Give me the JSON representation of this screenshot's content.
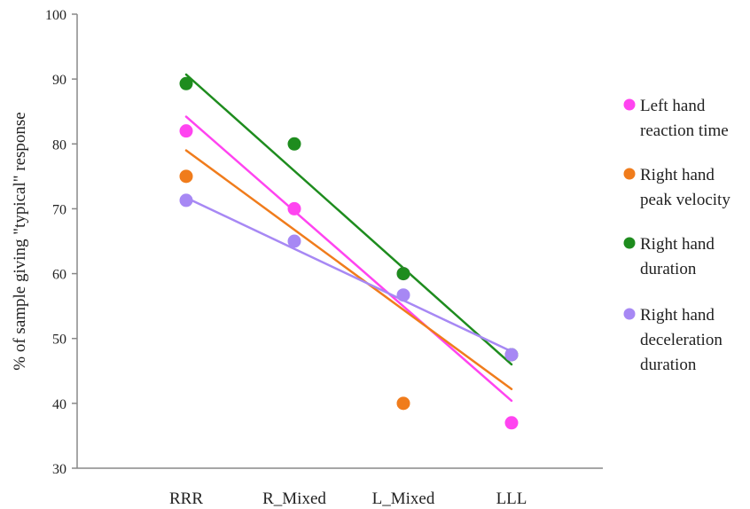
{
  "chart_data": {
    "type": "scatter",
    "categories": [
      "RRR",
      "R_Mixed",
      "L_Mixed",
      "LLL"
    ],
    "ylabel": "% of sample giving \"typical\" response",
    "xlabel": "",
    "ylim": [
      30,
      100
    ],
    "yticks": [
      30,
      40,
      50,
      60,
      70,
      80,
      90,
      100
    ],
    "grid": false,
    "legend_position": "right",
    "trendlines": true,
    "series": [
      {
        "name": "Left hand reaction time",
        "legend_lines": [
          "Left hand",
          "reaction time"
        ],
        "color": "#ff44f0",
        "values": [
          82,
          70,
          60,
          37
        ],
        "trend": [
          84.2,
          40.4
        ]
      },
      {
        "name": "Right hand peak velocity",
        "legend_lines": [
          "Right hand",
          "peak velocity"
        ],
        "color": "#f07c1c",
        "values": [
          75,
          null,
          40,
          null
        ],
        "trend": [
          79,
          42.2
        ]
      },
      {
        "name": "Right hand duration",
        "legend_lines": [
          "Right hand",
          "duration"
        ],
        "color": "#1e8c1e",
        "values": [
          89.3,
          80,
          60,
          47.5
        ],
        "trend": [
          90.7,
          46
        ]
      },
      {
        "name": "Right hand deceleration duration",
        "legend_lines": [
          "Right hand",
          "deceleration",
          "duration"
        ],
        "color": "#a788f4",
        "values": [
          71.3,
          65,
          56.7,
          47.5
        ],
        "trend": [
          71.7,
          48
        ]
      }
    ]
  }
}
